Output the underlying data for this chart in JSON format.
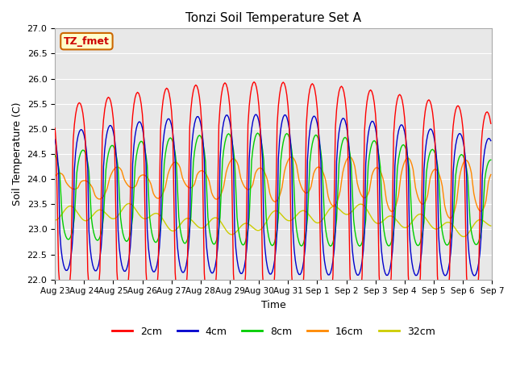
{
  "title": "Tonzi Soil Temperature Set A",
  "ylabel": "Soil Temperature (C)",
  "xlabel": "Time",
  "ylim": [
    22.0,
    27.0
  ],
  "yticks": [
    22.0,
    22.5,
    23.0,
    23.5,
    24.0,
    24.5,
    25.0,
    25.5,
    26.0,
    26.5,
    27.0
  ],
  "annotation_text": "TZ_fmet",
  "annotation_bg": "#ffffcc",
  "annotation_edge": "#cc0000",
  "colors": {
    "2cm": "#ff0000",
    "4cm": "#0000cc",
    "8cm": "#00cc00",
    "16cm": "#ff8800",
    "32cm": "#cccc00"
  },
  "legend_labels": [
    "2cm",
    "4cm",
    "8cm",
    "16cm",
    "32cm"
  ],
  "background_color": "#e8e8e8",
  "fig_color": "#ffffff"
}
